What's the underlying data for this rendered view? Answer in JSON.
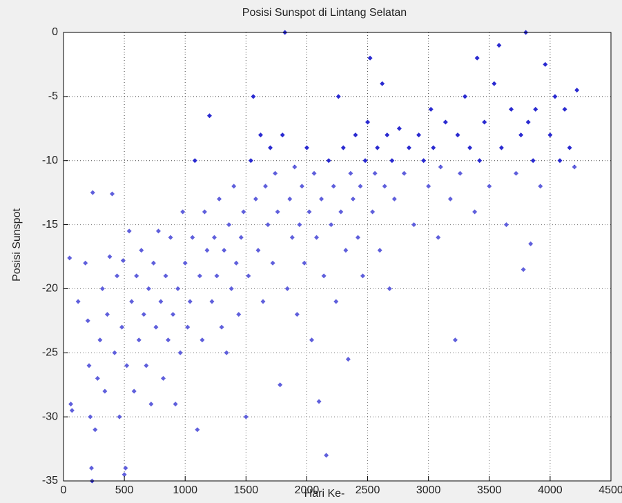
{
  "chart_data": {
    "type": "scatter",
    "title": "Posisi Sunspot di Lintang Selatan",
    "x_label": "Hari Ke-",
    "y_label": "Posisi Sunspot",
    "x": [
      50,
      60,
      70,
      120,
      180,
      200,
      210,
      220,
      230,
      235,
      240,
      260,
      280,
      300,
      320,
      340,
      360,
      380,
      400,
      420,
      440,
      460,
      480,
      490,
      500,
      510,
      520,
      540,
      560,
      580,
      600,
      620,
      640,
      660,
      680,
      700,
      720,
      740,
      760,
      780,
      800,
      820,
      840,
      860,
      880,
      900,
      920,
      940,
      960,
      980,
      1000,
      1020,
      1040,
      1060,
      1080,
      1100,
      1120,
      1140,
      1160,
      1180,
      1200,
      1220,
      1240,
      1260,
      1280,
      1300,
      1320,
      1340,
      1360,
      1380,
      1400,
      1420,
      1440,
      1460,
      1480,
      1500,
      1520,
      1540,
      1560,
      1580,
      1600,
      1620,
      1640,
      1660,
      1680,
      1700,
      1720,
      1740,
      1760,
      1780,
      1800,
      1820,
      1840,
      1860,
      1880,
      1900,
      1920,
      1940,
      1960,
      1980,
      2000,
      2020,
      2040,
      2060,
      2080,
      2100,
      2120,
      2140,
      2160,
      2180,
      2200,
      2220,
      2240,
      2260,
      2280,
      2300,
      2320,
      2340,
      2360,
      2380,
      2400,
      2420,
      2440,
      2460,
      2480,
      2500,
      2520,
      2540,
      2560,
      2580,
      2600,
      2620,
      2640,
      2660,
      2680,
      2700,
      2720,
      2760,
      2800,
      2840,
      2880,
      2920,
      2960,
      3000,
      3020,
      3040,
      3080,
      3100,
      3140,
      3180,
      3220,
      3240,
      3260,
      3300,
      3340,
      3380,
      3400,
      3420,
      3460,
      3500,
      3540,
      3580,
      3600,
      3640,
      3680,
      3720,
      3760,
      3780,
      3800,
      3820,
      3840,
      3860,
      3880,
      3920,
      3960,
      4000,
      4040,
      4080,
      4120,
      4160,
      4200,
      4220
    ],
    "values": [
      -17.6,
      -29,
      -29.5,
      -21,
      -18,
      -22.5,
      -26,
      -30,
      -34,
      -35,
      -12.5,
      -31,
      -27,
      -24,
      -20,
      -28,
      -22,
      -17.5,
      -12.6,
      -25,
      -19,
      -30,
      -23,
      -17.8,
      -34.5,
      -34,
      -26,
      -15.5,
      -21,
      -28,
      -19,
      -24,
      -17,
      -22,
      -26,
      -20,
      -29,
      -18,
      -23,
      -15.5,
      -21,
      -27,
      -19,
      -24,
      -16,
      -22,
      -29,
      -20,
      -25,
      -14,
      -18,
      -23,
      -21,
      -16,
      -10,
      -31,
      -19,
      -24,
      -14,
      -17,
      -6.5,
      -21,
      -16,
      -19,
      -13,
      -23,
      -17,
      -25,
      -15,
      -20,
      -12,
      -18,
      -22,
      -16,
      -14,
      -30,
      -19,
      -10,
      -5,
      -13,
      -17,
      -8,
      -21,
      -12,
      -15,
      -9,
      -18,
      -11,
      -14,
      -27.5,
      -8,
      0,
      -20,
      -13,
      -16,
      -10.5,
      -22,
      -15,
      -12,
      -18,
      -9,
      -14,
      -24,
      -11,
      -16,
      -28.8,
      -13,
      -19,
      -33,
      -10,
      -15,
      -12,
      -21,
      -5,
      -14,
      -9,
      -17,
      -25.5,
      -11,
      -13,
      -8,
      -16,
      -12,
      -19,
      -10,
      -7,
      -2,
      -14,
      -11,
      -9,
      -17,
      -4,
      -12,
      -8,
      -20,
      -10,
      -13,
      -7.5,
      -11,
      -9,
      -15,
      -8,
      -10,
      -12,
      -6,
      -9,
      -16,
      -10.5,
      -7,
      -13,
      -24,
      -8,
      -11,
      -5,
      -9,
      -14,
      -2,
      -10,
      -7,
      -12,
      -4,
      -1,
      -9,
      -15,
      -6,
      -11,
      -8,
      -18.5,
      0,
      -7,
      -16.5,
      -10,
      -6,
      -12,
      -2.5,
      -8,
      -5,
      -10,
      -6,
      -9,
      -10.5,
      -4.5
    ],
    "color": "#2a2ad0",
    "xlim": [
      0,
      4500
    ],
    "ylim": [
      -35,
      0
    ],
    "xticks": [
      0,
      500,
      1000,
      1500,
      2000,
      2500,
      3000,
      3500,
      4000,
      4500
    ],
    "yticks": [
      -35,
      -30,
      -25,
      -20,
      -15,
      -10,
      -5,
      0
    ],
    "grid": true
  }
}
